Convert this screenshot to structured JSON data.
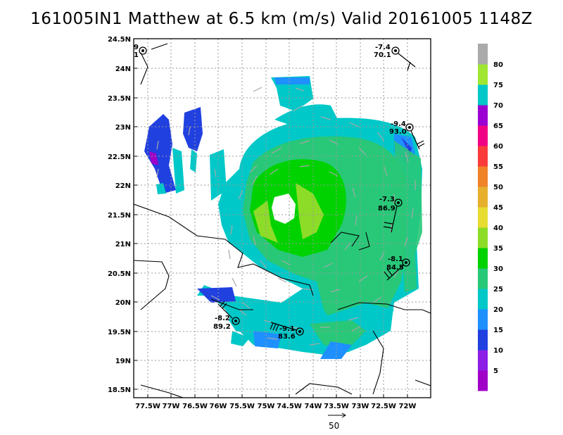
{
  "title": "161005IN1 Matthew at 6.5 km (m/s) Valid 20161005 1148Z",
  "map": {
    "lon_ticks": [
      "77.5W",
      "77W",
      "76.5W",
      "76W",
      "75.5W",
      "75W",
      "74.5W",
      "74W",
      "73.5W",
      "73W",
      "72.5W",
      "72W"
    ],
    "lat_ticks": [
      "24.5N",
      "24N",
      "23.5N",
      "23N",
      "22.5N",
      "22N",
      "21.5N",
      "21N",
      "20.5N",
      "20N",
      "19.5N",
      "19N",
      "18.5N"
    ],
    "lon_range": [
      -77.85,
      -71.65
    ],
    "lat_range": [
      18.4,
      24.5
    ]
  },
  "colorbar": {
    "labels": [
      "5",
      "10",
      "15",
      "20",
      "25",
      "30",
      "35",
      "40",
      "45",
      "50",
      "55",
      "60",
      "65",
      "70",
      "75",
      "80"
    ],
    "colors": [
      "#a000c8",
      "#8c1ee6",
      "#2040e0",
      "#1e90ff",
      "#00c8c8",
      "#28c878",
      "#00d200",
      "#8cdc28",
      "#e6dc32",
      "#e6af2d",
      "#f08228",
      "#fa3c3c",
      "#f00082",
      "#9b00d2",
      "#00c8c8",
      "#a0e632",
      "#aaaaaa"
    ]
  },
  "stations": [
    {
      "top": "9",
      "bottom": "1"
    },
    {
      "top": "-7.4",
      "bottom": "70.1"
    },
    {
      "top": "-9.4",
      "bottom": "93.0"
    },
    {
      "top": "-7.3",
      "bottom": "86.9"
    },
    {
      "top": "-8.1",
      "bottom": "84.5"
    },
    {
      "top": "-8.2",
      "bottom": "89.2"
    },
    {
      "top": "-9.1",
      "bottom": "83.6"
    }
  ],
  "reference_vector": "50"
}
